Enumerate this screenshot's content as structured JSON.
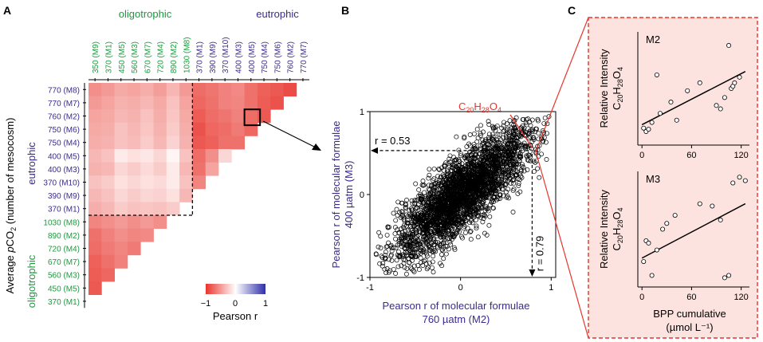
{
  "chart_data": [
    {
      "panel": "A",
      "type": "heatmap",
      "groups": {
        "oligotrophic": "oligotrophic",
        "eutrophic": "eutrophic"
      },
      "colors": {
        "oligotrophic": "#1a9a3c",
        "eutrophic": "#3b2a8c",
        "negative": "#e8342c",
        "positive": "#2f2fa8",
        "zero": "#ffffff"
      },
      "columns": [
        "350 (M9)",
        "370 (M1)",
        "450 (M5)",
        "560 (M3)",
        "670 (M7)",
        "720 (M4)",
        "890 (M2)",
        "1030 (M8)",
        "370 (M1)",
        "390 (M9)",
        "370 (M10)",
        "400 (M3)",
        "400 (M5)",
        "750 (M4)",
        "750 (M6)",
        "760 (M2)",
        "770 (M7)"
      ],
      "column_groups": [
        "o",
        "o",
        "o",
        "o",
        "o",
        "o",
        "o",
        "o",
        "e",
        "e",
        "e",
        "e",
        "e",
        "e",
        "e",
        "e",
        "e"
      ],
      "rows": [
        "770 (M8)",
        "770 (M7)",
        "760 (M2)",
        "750 (M6)",
        "750 (M4)",
        "400 (M5)",
        "400 (M3)",
        "370 (M10)",
        "390 (M9)",
        "370 (M1)",
        "1030 (M8)",
        "890 (M2)",
        "720 (M4)",
        "670 (M7)",
        "560 (M3)",
        "450 (M5)",
        "370 (M1)"
      ],
      "row_groups": [
        "e",
        "e",
        "e",
        "e",
        "e",
        "e",
        "e",
        "e",
        "e",
        "e",
        "o",
        "o",
        "o",
        "o",
        "o",
        "o",
        "o"
      ],
      "cells": [
        [
          -0.55,
          -0.5,
          -0.42,
          -0.45,
          -0.4,
          -0.48,
          -0.36,
          -0.5,
          -0.72,
          -0.68,
          -0.62,
          -0.58,
          -0.7,
          -0.78,
          -0.82,
          -0.88
        ],
        [
          -0.5,
          -0.45,
          -0.38,
          -0.4,
          -0.35,
          -0.42,
          -0.3,
          -0.45,
          -0.75,
          -0.7,
          -0.62,
          -0.6,
          -0.7,
          -0.8,
          -0.85
        ],
        [
          -0.45,
          -0.42,
          -0.35,
          -0.38,
          -0.3,
          -0.4,
          -0.28,
          -0.42,
          -0.8,
          -0.72,
          -0.68,
          -0.62,
          -0.72,
          -0.82
        ],
        [
          -0.42,
          -0.4,
          -0.3,
          -0.35,
          -0.28,
          -0.38,
          -0.25,
          -0.4,
          -0.85,
          -0.75,
          -0.72,
          -0.65,
          -0.75
        ],
        [
          -0.4,
          -0.38,
          -0.3,
          -0.33,
          -0.25,
          -0.35,
          -0.22,
          -0.38,
          -0.82,
          -0.78,
          -0.7,
          -0.7
        ],
        [
          -0.35,
          -0.3,
          -0.1,
          -0.15,
          -0.12,
          -0.2,
          -0.05,
          -0.3,
          -0.72,
          -0.55,
          -0.2
        ],
        [
          -0.38,
          -0.35,
          -0.2,
          -0.25,
          -0.18,
          -0.25,
          -0.1,
          -0.35,
          -0.7,
          -0.45
        ],
        [
          -0.3,
          -0.25,
          -0.15,
          -0.2,
          -0.15,
          -0.18,
          -0.1,
          -0.3,
          -0.6
        ],
        [
          -0.35,
          -0.3,
          -0.2,
          -0.25,
          -0.2,
          -0.22,
          -0.15,
          -0.35
        ],
        [
          -0.4,
          -0.35,
          -0.25,
          -0.3,
          -0.28,
          -0.3,
          -0.25
        ],
        [
          -0.6,
          -0.55,
          -0.5,
          -0.55,
          -0.5,
          -0.55
        ],
        [
          -0.7,
          -0.62,
          -0.55,
          -0.6,
          -0.58
        ],
        [
          -0.72,
          -0.65,
          -0.6,
          -0.65
        ],
        [
          -0.78,
          -0.7,
          -0.62
        ],
        [
          -0.8,
          -0.75
        ],
        [
          -0.82
        ],
        []
      ],
      "ylabel_prefix": "Average ",
      "ylabel_p": "p",
      "ylabel_co": "CO",
      "ylabel_sub": "2",
      "ylabel_suffix": " (number of mesocosm)",
      "legend_title": "Pearson r",
      "legend_ticks": [
        "−1",
        "0",
        "1"
      ],
      "vlim": [
        -1,
        1
      ]
    },
    {
      "panel": "B",
      "type": "scatter",
      "xlabel_line1": "Pearson r of molecular formulae",
      "xlabel_line2": "760 µatm (M2)",
      "ylabel_line1": "Pearson r of molecular formulae",
      "ylabel_line2": "400 µatm (M3)",
      "xlim": [
        -1,
        1.05
      ],
      "ylim": [
        -1,
        1
      ],
      "xticks": [
        "-1",
        "0",
        "1"
      ],
      "yticks": [
        "-1",
        "0",
        "1"
      ],
      "trend_slope": 0.85,
      "spread": 0.22,
      "n_points": 3000,
      "highlight_x": 0.79,
      "highlight_y": 0.53,
      "annotation_r_x": "r = 0.79",
      "annotation_r_y": "r = 0.53",
      "compound_c": "C",
      "compound_20": "20",
      "compound_h": "H",
      "compound_28": "28",
      "compound_o": "O",
      "compound_4": "4"
    },
    {
      "panel": "C",
      "type": "scatter",
      "border_color": "#e8342c",
      "background": "#fde3df",
      "xlabel_line1": "BPP cumulative",
      "xlabel_line2": "(µmol L⁻¹)",
      "ylabel_line1": "Relative Intensity",
      "ylabel_c": "C",
      "ylabel_20": "20",
      "ylabel_h": "H",
      "ylabel_28": "28",
      "ylabel_o": "O",
      "ylabel_4": "4",
      "xticks": [
        "0",
        "60",
        "120"
      ],
      "xlim": [
        -5,
        130
      ],
      "subplots": [
        {
          "name": "M2",
          "x": [
            2,
            5,
            8,
            12,
            18,
            22,
            35,
            42,
            55,
            70,
            90,
            95,
            100,
            105,
            108,
            110,
            112,
            118
          ],
          "y": [
            0.15,
            0.12,
            0.14,
            0.2,
            0.62,
            0.28,
            0.38,
            0.22,
            0.48,
            0.55,
            0.35,
            0.32,
            0.42,
            0.88,
            0.5,
            0.52,
            0.55,
            0.6
          ],
          "fit": [
            0.18,
            0.65
          ]
        },
        {
          "name": "M3",
          "x": [
            2,
            5,
            8,
            12,
            18,
            25,
            30,
            40,
            70,
            85,
            95,
            100,
            105,
            110,
            118,
            125
          ],
          "y": [
            0.22,
            0.4,
            0.38,
            0.1,
            0.32,
            0.5,
            0.55,
            0.62,
            0.72,
            0.7,
            0.58,
            0.08,
            0.1,
            0.9,
            0.95,
            0.92
          ],
          "fit": [
            0.25,
            0.72
          ]
        }
      ]
    }
  ],
  "labels": {
    "panel_a": "A",
    "panel_b": "B",
    "panel_c": "C"
  }
}
